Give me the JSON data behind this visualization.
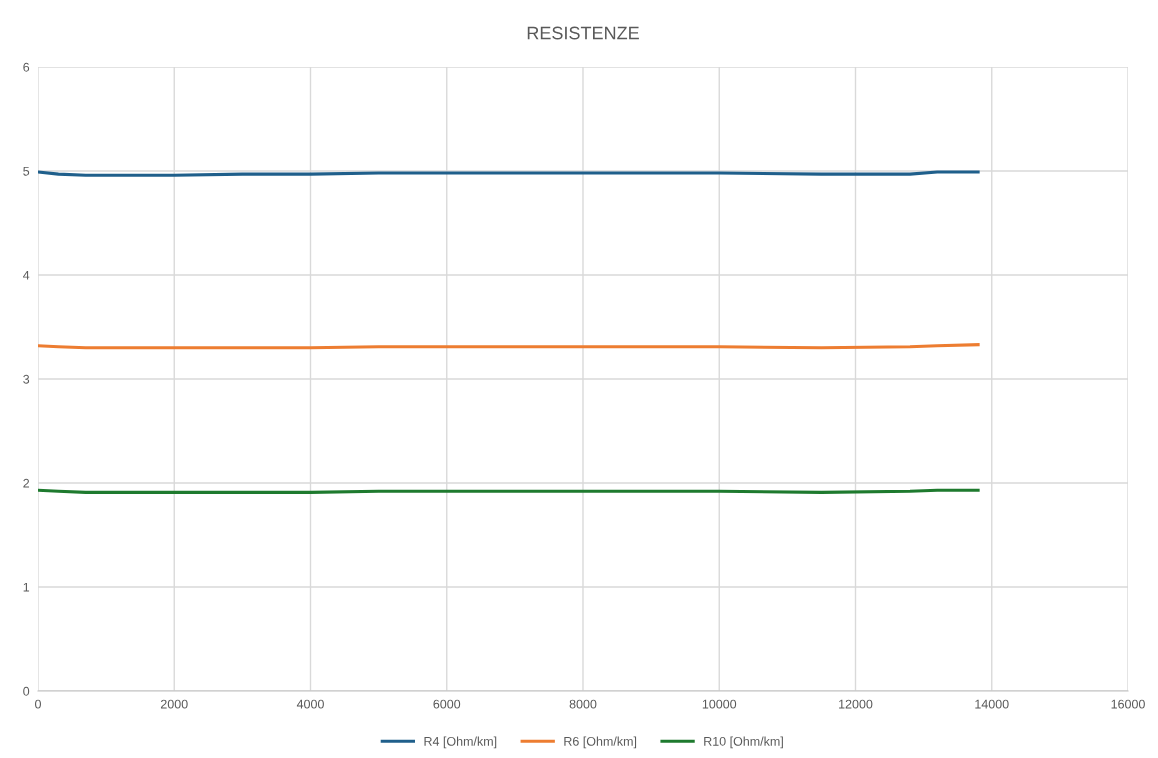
{
  "chart_data": {
    "type": "line",
    "title": "RESISTENZE",
    "x": [
      0,
      300,
      700,
      1200,
      2000,
      3000,
      4000,
      5000,
      6000,
      7400,
      8500,
      10000,
      11500,
      12800,
      13200,
      13800
    ],
    "series": [
      {
        "name": "R4 [Ohm/km]",
        "color": "#1f5f8b",
        "values": [
          4.99,
          4.97,
          4.96,
          4.96,
          4.96,
          4.97,
          4.97,
          4.98,
          4.98,
          4.98,
          4.98,
          4.98,
          4.97,
          4.97,
          4.99,
          4.99
        ]
      },
      {
        "name": "R6 [Ohm/km]",
        "color": "#ed7d31",
        "values": [
          3.32,
          3.31,
          3.3,
          3.3,
          3.3,
          3.3,
          3.3,
          3.31,
          3.31,
          3.31,
          3.31,
          3.31,
          3.3,
          3.31,
          3.32,
          3.33
        ]
      },
      {
        "name": "R10 [Ohm/km]",
        "color": "#1e7a2e",
        "values": [
          1.93,
          1.92,
          1.91,
          1.91,
          1.91,
          1.91,
          1.91,
          1.92,
          1.92,
          1.92,
          1.92,
          1.92,
          1.91,
          1.92,
          1.93,
          1.93
        ]
      }
    ],
    "xlim": [
      0,
      16000
    ],
    "xticks": [
      0,
      2000,
      4000,
      6000,
      8000,
      10000,
      12000,
      14000,
      16000
    ],
    "ylim": [
      0,
      6
    ],
    "yticks": [
      0,
      1,
      2,
      3,
      4,
      5,
      6
    ],
    "grid": true,
    "legend": "bottom",
    "marker": "none",
    "line_style": "solid"
  }
}
